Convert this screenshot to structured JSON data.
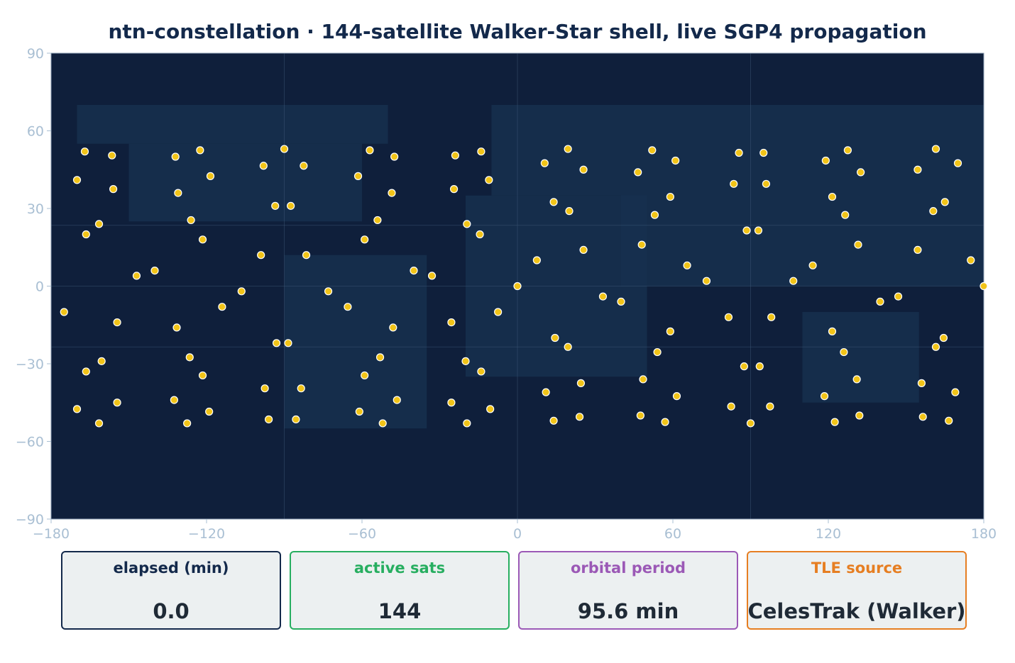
{
  "title": "ntn-constellation  ·  144-satellite Walker-Star shell, live SGP4 propagation",
  "colors": {
    "map_bg": "#0f1f3b",
    "land": "#16304f",
    "satellite": "#f2c418",
    "satellite_edge": "#ffffff",
    "tick_label": "#a9bfd3",
    "title": "#13294b",
    "grid": "#3d5677"
  },
  "chart_data": {
    "type": "scatter",
    "title": "ntn-constellation  ·  144-satellite Walker-Star shell, live SGP4 propagation",
    "xlabel": "",
    "ylabel": "",
    "xlim": [
      -180,
      180
    ],
    "ylim": [
      -90,
      90
    ],
    "xticks": [
      -180,
      -120,
      -60,
      0,
      60,
      120,
      180
    ],
    "yticks": [
      -90,
      -60,
      -30,
      0,
      30,
      60,
      90
    ],
    "xtick_labels": [
      "−180",
      "−120",
      "−60",
      "0",
      "60",
      "120",
      "180"
    ],
    "ytick_labels": [
      "−90",
      "−60",
      "−30",
      "0",
      "30",
      "60",
      "90"
    ],
    "grid": true,
    "grid_lon": [
      -90,
      0,
      90
    ],
    "grid_lat": [
      -23.5,
      0,
      23.5
    ],
    "land_regions": [
      {
        "name": "",
        "lon": [
          -170,
          -50
        ],
        "lat": [
          55,
          70
        ]
      },
      {
        "name": "",
        "lon": [
          -150,
          -60
        ],
        "lat": [
          25,
          55
        ]
      },
      {
        "name": "",
        "lon": [
          -90,
          -35
        ],
        "lat": [
          -55,
          12
        ]
      },
      {
        "name": "",
        "lon": [
          -10,
          40
        ],
        "lat": [
          35,
          70
        ]
      },
      {
        "name": "",
        "lon": [
          -20,
          50
        ],
        "lat": [
          -35,
          35
        ]
      },
      {
        "name": "",
        "lon": [
          40,
          180
        ],
        "lat": [
          0,
          70
        ]
      },
      {
        "name": "",
        "lon": [
          110,
          155
        ],
        "lat": [
          -45,
          -10
        ]
      }
    ],
    "series": [
      {
        "points": [
          [
            -175,
            -10
          ],
          [
            -170,
            41
          ],
          [
            -170,
            -47.5
          ],
          [
            -167,
            52
          ],
          [
            -166.5,
            20
          ],
          [
            -166.5,
            -33
          ],
          [
            -161.5,
            24
          ],
          [
            -161.5,
            -53
          ],
          [
            -160.5,
            -29
          ],
          [
            -156.5,
            50.5
          ],
          [
            -156,
            37.5
          ],
          [
            -154.5,
            -14
          ],
          [
            -154.5,
            -45
          ],
          [
            -147,
            4
          ],
          [
            -140,
            6
          ],
          [
            -132.5,
            -44
          ],
          [
            -132,
            50
          ],
          [
            -131.5,
            -16
          ],
          [
            -131,
            36
          ],
          [
            -127.5,
            -53
          ],
          [
            -126.5,
            -27.5
          ],
          [
            -126,
            25.5
          ],
          [
            -122.5,
            52.5
          ],
          [
            -121.5,
            18
          ],
          [
            -121.5,
            -34.5
          ],
          [
            -119,
            -48.5
          ],
          [
            -118.5,
            42.5
          ],
          [
            -114,
            -8
          ],
          [
            -106.5,
            -2
          ],
          [
            -99,
            12
          ],
          [
            -98,
            46.5
          ],
          [
            -97.5,
            -39.5
          ],
          [
            -96,
            -51.5
          ],
          [
            -93.5,
            31
          ],
          [
            -93,
            -22
          ],
          [
            -90,
            53
          ],
          [
            -88.5,
            -22
          ],
          [
            -87.5,
            31
          ],
          [
            -85.5,
            -51.5
          ],
          [
            -83.5,
            -39.5
          ],
          [
            -82.5,
            46.5
          ],
          [
            -81.5,
            12
          ],
          [
            -73,
            -2
          ],
          [
            -65.5,
            -8
          ],
          [
            -61.5,
            42.5
          ],
          [
            -61,
            -48.5
          ],
          [
            -59,
            -34.5
          ],
          [
            -59,
            18
          ],
          [
            -57,
            52.5
          ],
          [
            -54,
            25.5
          ],
          [
            -53,
            -27.5
          ],
          [
            -52,
            -53
          ],
          [
            -48.5,
            36
          ],
          [
            -48,
            -16
          ],
          [
            -47.5,
            50
          ],
          [
            -46.5,
            -44
          ],
          [
            -40,
            6
          ],
          [
            -33,
            4
          ],
          [
            -25.5,
            -14
          ],
          [
            -25.5,
            -45
          ],
          [
            -24.5,
            37.5
          ],
          [
            -24,
            50.5
          ],
          [
            -20,
            -29
          ],
          [
            -19.5,
            -53
          ],
          [
            -19.5,
            24
          ],
          [
            -14.5,
            20
          ],
          [
            -14,
            -33
          ],
          [
            -14,
            52
          ],
          [
            -11,
            41
          ],
          [
            -10.5,
            -47.5
          ],
          [
            -7.5,
            -10
          ],
          [
            0,
            0
          ],
          [
            7.5,
            10
          ],
          [
            10.5,
            47.5
          ],
          [
            11,
            -41
          ],
          [
            14,
            -52
          ],
          [
            14,
            32.5
          ],
          [
            14.5,
            -20
          ],
          [
            19.5,
            -23.5
          ],
          [
            19.5,
            53
          ],
          [
            20,
            29
          ],
          [
            24,
            -50.5
          ],
          [
            24.5,
            -37.5
          ],
          [
            25.5,
            14
          ],
          [
            25.5,
            45
          ],
          [
            33,
            -4
          ],
          [
            40,
            -6
          ],
          [
            46.5,
            44
          ],
          [
            47.5,
            -50
          ],
          [
            48,
            16
          ],
          [
            48.5,
            -36
          ],
          [
            52,
            52.5
          ],
          [
            53,
            27.5
          ],
          [
            54,
            -25.5
          ],
          [
            57,
            -52.5
          ],
          [
            59,
            -17.5
          ],
          [
            59,
            34.5
          ],
          [
            61,
            48.5
          ],
          [
            61.5,
            -42.5
          ],
          [
            65.5,
            8
          ],
          [
            73,
            2
          ],
          [
            81.5,
            -12
          ],
          [
            82.5,
            -46.5
          ],
          [
            83.5,
            39.5
          ],
          [
            85.5,
            51.5
          ],
          [
            87.5,
            -31
          ],
          [
            88.5,
            21.5
          ],
          [
            90,
            -53
          ],
          [
            93,
            21.5
          ],
          [
            93.5,
            -31
          ],
          [
            95,
            51.5
          ],
          [
            96,
            39.5
          ],
          [
            97.5,
            -46.5
          ],
          [
            98,
            -12
          ],
          [
            106.5,
            2
          ],
          [
            114,
            8
          ],
          [
            118.5,
            -42.5
          ],
          [
            119,
            48.5
          ],
          [
            121.5,
            -17.5
          ],
          [
            121.5,
            34.5
          ],
          [
            122.5,
            -52.5
          ],
          [
            126,
            -25.5
          ],
          [
            126.5,
            27.5
          ],
          [
            127.5,
            52.5
          ],
          [
            131,
            -36
          ],
          [
            131.5,
            16
          ],
          [
            132,
            -50
          ],
          [
            132.5,
            44
          ],
          [
            140,
            -6
          ],
          [
            147,
            -4
          ],
          [
            154.5,
            14
          ],
          [
            154.5,
            45
          ],
          [
            156,
            -37.5
          ],
          [
            156.5,
            -50.5
          ],
          [
            160.5,
            29
          ],
          [
            161.5,
            -23.5
          ],
          [
            161.5,
            53
          ],
          [
            164.5,
            -20
          ],
          [
            165,
            32.5
          ],
          [
            166.5,
            -52
          ],
          [
            169,
            -41
          ],
          [
            170,
            47.5
          ],
          [
            175,
            10
          ],
          [
            180,
            0
          ]
        ]
      }
    ]
  },
  "stats": [
    {
      "label": "elapsed (min)",
      "value": "0.0",
      "color": "#13294b"
    },
    {
      "label": "active sats",
      "value": "144",
      "color": "#27ae60"
    },
    {
      "label": "orbital period",
      "value": "95.6 min",
      "color": "#9b59b6"
    },
    {
      "label": "TLE source",
      "value": "CelesTrak (Walker)",
      "color": "#e67e22"
    }
  ]
}
